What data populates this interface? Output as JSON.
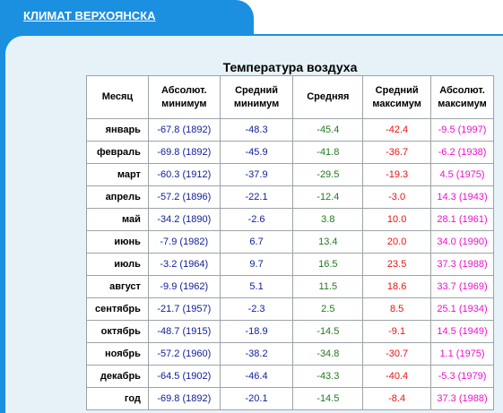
{
  "header": {
    "tab_label": "КЛИМАТ ВЕРХОЯНСКА"
  },
  "table": {
    "title": "Температура воздуха",
    "columns": [
      "Месяц",
      "Абсолют. минимум",
      "Средний минимум",
      "Средняя",
      "Средний максимум",
      "Абсолют. максимум"
    ],
    "rows": [
      [
        "январь",
        "-67.8 (1892)",
        "-48.3",
        "-45.4",
        "-42.4",
        "-9.5 (1997)"
      ],
      [
        "февраль",
        "-69.8 (1892)",
        "-45.9",
        "-41.8",
        "-36.7",
        "-6.2 (1938)"
      ],
      [
        "март",
        "-60.3 (1912)",
        "-37.9",
        "-29.5",
        "-19.3",
        "4.5 (1975)"
      ],
      [
        "апрель",
        "-57.2 (1896)",
        "-22.1",
        "-12.4",
        "-3.0",
        "14.3 (1943)"
      ],
      [
        "май",
        "-34.2 (1890)",
        "-2.6",
        "3.8",
        "10.0",
        "28.1 (1961)"
      ],
      [
        "июнь",
        "-7.9 (1982)",
        "6.7",
        "13.4",
        "20.0",
        "34.0 (1990)"
      ],
      [
        "июль",
        "-3.2 (1964)",
        "9.7",
        "16.5",
        "23.5",
        "37.3 (1988)"
      ],
      [
        "август",
        "-9.9 (1962)",
        "5.1",
        "11.5",
        "18.6",
        "33.7 (1969)"
      ],
      [
        "сентябрь",
        "-21.7 (1957)",
        "-2.3",
        "2.5",
        "8.5",
        "25.1 (1934)"
      ],
      [
        "октябрь",
        "-48.7 (1915)",
        "-18.9",
        "-14.5",
        "-9.1",
        "14.5 (1949)"
      ],
      [
        "ноябрь",
        "-57.2 (1960)",
        "-38.2",
        "-34.8",
        "-30.7",
        "1.1 (1975)"
      ],
      [
        "декабрь",
        "-64.5 (1902)",
        "-46.4",
        "-43.3",
        "-40.4",
        "-5.3 (1979)"
      ],
      [
        "год",
        "-69.8 (1892)",
        "-20.1",
        "-14.5",
        "-8.4",
        "37.3 (1988)"
      ]
    ]
  },
  "colors": {
    "tab_blue": "#1b8fe0",
    "panel_bg": "#e6f2f8",
    "abs_min": "#10209a",
    "avg_min": "#10209a",
    "avg": "#1f7a1f",
    "avg_max": "#ee1111",
    "abs_max": "#ee11cc"
  }
}
